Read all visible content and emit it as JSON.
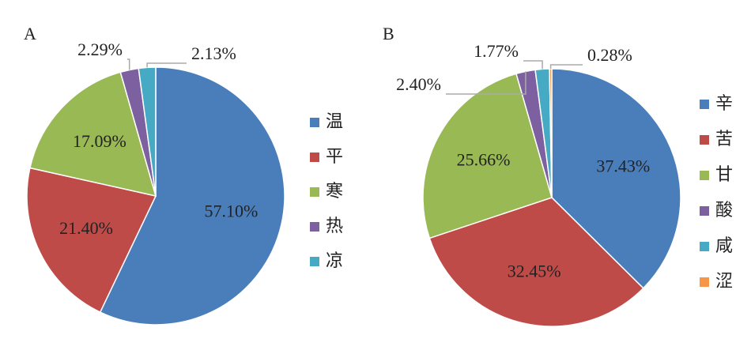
{
  "chart_data": [
    {
      "type": "pie",
      "title": "A",
      "categories": [
        "温",
        "平",
        "寒",
        "热",
        "凉"
      ],
      "values": [
        57.1,
        21.4,
        17.09,
        2.29,
        2.13
      ],
      "value_labels": [
        "57.10%",
        "21.40%",
        "17.09%",
        "2.29%",
        "2.13%"
      ],
      "colors": [
        "#4a7ebb",
        "#be4b48",
        "#98b954",
        "#7d60a0",
        "#46aac5"
      ]
    },
    {
      "type": "pie",
      "title": "B",
      "categories": [
        "辛",
        "苦",
        "甘",
        "酸",
        "咸",
        "涩"
      ],
      "values": [
        37.43,
        32.45,
        25.66,
        2.4,
        1.77,
        0.28
      ],
      "value_labels": [
        "37.43%",
        "32.45%",
        "25.66%",
        "2.40%",
        "1.77%",
        "0.28%"
      ],
      "colors": [
        "#4a7ebb",
        "#be4b48",
        "#98b954",
        "#7d60a0",
        "#46aac5",
        "#f79646"
      ]
    }
  ]
}
